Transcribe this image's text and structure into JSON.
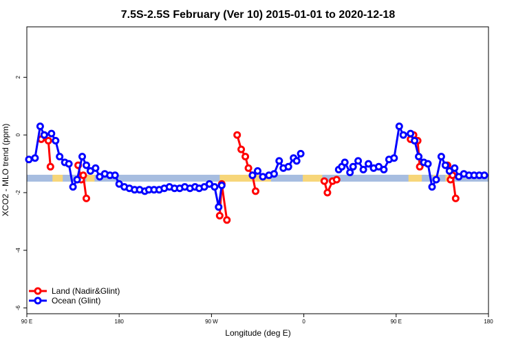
{
  "chart_data": {
    "type": "line",
    "title": "7.5S-2.5S February (Ver 10)   2015-01-01 to 2020-12-18",
    "xlabel": "Longitude (deg E)",
    "ylabel": "XCO2 - MLO trend (ppm)",
    "xlim": [
      90,
      540
    ],
    "ylim": [
      -6.2,
      3.75
    ],
    "x_ticks": [
      {
        "value": 90,
        "label": "90 E"
      },
      {
        "value": 180,
        "label": "180"
      },
      {
        "value": 270,
        "label": "90 W"
      },
      {
        "value": 360,
        "label": "0"
      },
      {
        "value": 450,
        "label": "90 E"
      },
      {
        "value": 540,
        "label": "180"
      }
    ],
    "y_ticks": [
      {
        "value": -6,
        "label": "-6"
      },
      {
        "value": -4,
        "label": "-4"
      },
      {
        "value": -2,
        "label": "-2"
      },
      {
        "value": 0,
        "label": "0"
      },
      {
        "value": 2,
        "label": "2"
      }
    ],
    "legend": {
      "position": "bottom-left"
    },
    "landmask_band": {
      "y_center": -1.5,
      "ocean_color": "#a7bde0",
      "land_color": "#f7d679",
      "land_spans": [
        [
          115,
          125
        ],
        [
          148,
          156
        ],
        [
          278,
          328
        ],
        [
          359,
          378
        ],
        [
          462,
          475
        ],
        [
          486,
          492
        ],
        [
          498,
          501
        ]
      ]
    },
    "series": [
      {
        "name": "Land (Nadir&Glint)",
        "color": "#ff0000",
        "segments": [
          [
            [
              104,
              -0.15
            ],
            [
              107,
              0.0
            ],
            [
              111,
              -0.2
            ],
            [
              113,
              -1.1
            ]
          ],
          [
            [
              140,
              -1.05
            ],
            [
              143,
              -1.55
            ],
            [
              145,
              -1.4
            ],
            [
              148,
              -2.2
            ]
          ],
          [
            [
              278,
              -2.8
            ],
            [
              280,
              -1.7
            ],
            [
              285,
              -2.95
            ]
          ],
          [
            [
              295,
              0.0
            ],
            [
              299,
              -0.5
            ],
            [
              303,
              -0.75
            ],
            [
              306,
              -1.15
            ],
            [
              310,
              -1.4
            ],
            [
              313,
              -1.95
            ]
          ],
          [
            [
              380,
              -1.6
            ],
            [
              383,
              -2.0
            ],
            [
              388,
              -1.6
            ],
            [
              392,
              -1.55
            ]
          ],
          [
            [
              464,
              -0.15
            ],
            [
              467,
              0.0
            ],
            [
              471,
              -0.2
            ],
            [
              473,
              -1.1
            ]
          ],
          [
            [
              500,
              -1.05
            ],
            [
              503,
              -1.55
            ],
            [
              505,
              -1.4
            ],
            [
              508,
              -2.2
            ]
          ]
        ]
      },
      {
        "name": "Ocean (Glint)",
        "color": "#0000ff",
        "segments": [
          [
            [
              92,
              -0.85
            ],
            [
              98,
              -0.8
            ],
            [
              103,
              0.3
            ],
            [
              107,
              0.0
            ],
            [
              114,
              0.05
            ],
            [
              118,
              -0.2
            ],
            [
              122,
              -0.75
            ],
            [
              127,
              -0.95
            ],
            [
              131,
              -1.0
            ],
            [
              135,
              -1.8
            ],
            [
              139,
              -1.55
            ],
            [
              144,
              -0.75
            ],
            [
              148,
              -1.05
            ],
            [
              152,
              -1.25
            ],
            [
              157,
              -1.15
            ],
            [
              161,
              -1.45
            ],
            [
              166,
              -1.35
            ],
            [
              171,
              -1.4
            ],
            [
              176,
              -1.4
            ],
            [
              180,
              -1.7
            ],
            [
              185,
              -1.8
            ],
            [
              190,
              -1.85
            ],
            [
              195,
              -1.9
            ],
            [
              200,
              -1.9
            ],
            [
              205,
              -1.95
            ],
            [
              209,
              -1.9
            ],
            [
              214,
              -1.9
            ],
            [
              219,
              -1.9
            ],
            [
              224,
              -1.85
            ],
            [
              229,
              -1.8
            ],
            [
              234,
              -1.85
            ],
            [
              239,
              -1.85
            ],
            [
              244,
              -1.8
            ],
            [
              249,
              -1.85
            ],
            [
              254,
              -1.8
            ],
            [
              258,
              -1.85
            ],
            [
              263,
              -1.8
            ],
            [
              268,
              -1.7
            ],
            [
              273,
              -1.8
            ],
            [
              277,
              -2.5
            ],
            [
              280,
              -1.75
            ]
          ],
          [
            [
              310,
              -1.4
            ],
            [
              315,
              -1.25
            ],
            [
              320,
              -1.45
            ],
            [
              326,
              -1.4
            ],
            [
              331,
              -1.35
            ],
            [
              336,
              -0.9
            ],
            [
              340,
              -1.15
            ],
            [
              345,
              -1.1
            ],
            [
              350,
              -0.8
            ],
            [
              353,
              -0.9
            ],
            [
              357,
              -0.65
            ]
          ],
          [
            [
              394,
              -1.2
            ],
            [
              397,
              -1.1
            ],
            [
              400,
              -0.95
            ],
            [
              405,
              -1.3
            ],
            [
              408,
              -1.1
            ],
            [
              413,
              -0.9
            ],
            [
              418,
              -1.2
            ],
            [
              423,
              -1.0
            ],
            [
              428,
              -1.15
            ],
            [
              433,
              -1.1
            ],
            [
              438,
              -1.2
            ],
            [
              443,
              -0.85
            ],
            [
              448,
              -0.8
            ],
            [
              453,
              0.3
            ],
            [
              457,
              0.0
            ],
            [
              464,
              0.05
            ],
            [
              468,
              -0.2
            ],
            [
              472,
              -0.75
            ],
            [
              477,
              -0.95
            ],
            [
              481,
              -1.0
            ],
            [
              485,
              -1.8
            ],
            [
              489,
              -1.55
            ],
            [
              494,
              -0.75
            ],
            [
              498,
              -1.05
            ],
            [
              502,
              -1.25
            ],
            [
              507,
              -1.15
            ],
            [
              511,
              -1.45
            ],
            [
              516,
              -1.35
            ],
            [
              521,
              -1.4
            ],
            [
              526,
              -1.4
            ],
            [
              531,
              -1.4
            ],
            [
              536,
              -1.4
            ]
          ]
        ]
      }
    ]
  }
}
